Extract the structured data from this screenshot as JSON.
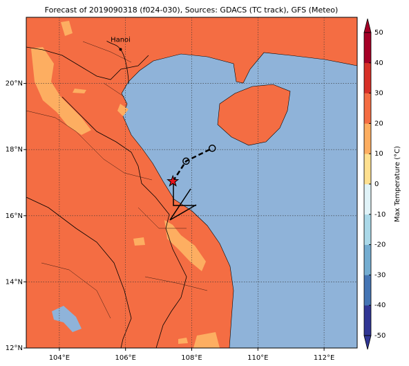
{
  "title": "Forecast of 2019090318 (f024-030), Sources: GDACS (TC track), GFS (Meteo)",
  "map": {
    "xlim": [
      103,
      113
    ],
    "ylim": [
      12,
      22
    ],
    "xticks": [
      {
        "value": 104,
        "label": "104°E"
      },
      {
        "value": 106,
        "label": "106°E"
      },
      {
        "value": 108,
        "label": "108°E"
      },
      {
        "value": 110,
        "label": "110°E"
      },
      {
        "value": 112,
        "label": "112°E"
      }
    ],
    "yticks": [
      {
        "value": 12,
        "label": "12°N"
      },
      {
        "value": 14,
        "label": "14°N"
      },
      {
        "value": 16,
        "label": "16°N"
      },
      {
        "value": 18,
        "label": "18°N"
      },
      {
        "value": 20,
        "label": "20°N"
      }
    ],
    "grid": true,
    "city": {
      "name": "Hanoi",
      "lon": 105.85,
      "lat": 21.03
    },
    "track": {
      "lon": [
        107.43,
        107.83,
        108.62
      ],
      "lat": [
        17.04,
        17.65,
        18.04
      ]
    }
  },
  "colorbar": {
    "label": "Max Temperature (°C)",
    "lim": [
      -50,
      50
    ],
    "ticks": [
      -50,
      -40,
      -30,
      -20,
      -10,
      0,
      10,
      20,
      30,
      40,
      50
    ],
    "colors": [
      "#313695",
      "#4575b4",
      "#74add1",
      "#abd9e9",
      "#e0f3f8",
      "#fee090",
      "#fdae61",
      "#f46d43",
      "#d73027",
      "#a50026"
    ]
  }
}
